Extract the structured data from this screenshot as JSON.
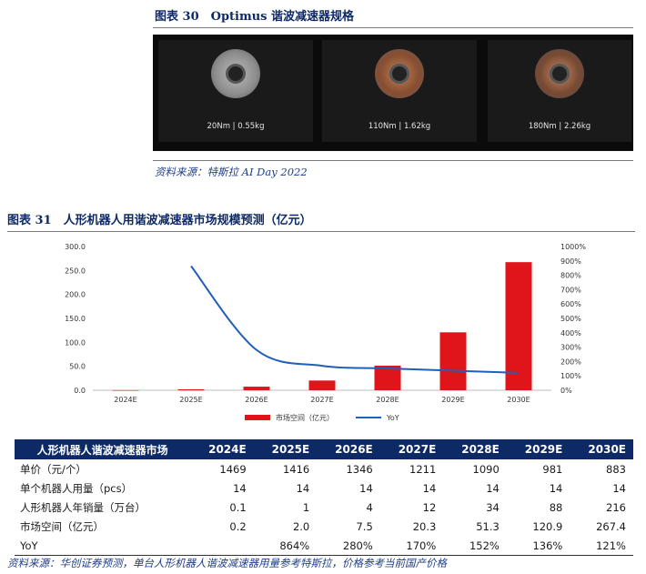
{
  "figure30": {
    "title": "图表 30　Optimus 谐波减速器规格",
    "products": [
      {
        "spec": "20Nm  |  0.55kg",
        "tone": "#9a9a9a"
      },
      {
        "spec": "110Nm  |  1.62kg",
        "tone": "#8a4e30"
      },
      {
        "spec": "180Nm  |  2.26kg",
        "tone": "#7a4a32"
      }
    ],
    "source": "资料来源：特斯拉 AI Day 2022"
  },
  "figure31": {
    "title": "图表 31　人形机器人用谐波减速器市场规模预测（亿元）"
  },
  "chart_data": {
    "type": "bar",
    "categories": [
      "2024E",
      "2025E",
      "2026E",
      "2027E",
      "2028E",
      "2029E",
      "2030E"
    ],
    "series": [
      {
        "name": "市场空间（亿元）",
        "type": "bar",
        "axis": "left",
        "color": "#e0151b",
        "values": [
          0.2,
          2.0,
          7.5,
          20.3,
          51.3,
          120.9,
          267.4
        ]
      },
      {
        "name": "YoY",
        "type": "line",
        "axis": "right",
        "color": "#1f5fb8",
        "values": [
          null,
          864,
          280,
          170,
          152,
          136,
          121
        ]
      }
    ],
    "y_left": {
      "ticks": [
        "0.0",
        "50.0",
        "100.0",
        "150.0",
        "200.0",
        "250.0",
        "300.0"
      ],
      "ylim": [
        0,
        300
      ]
    },
    "y_right": {
      "ticks": [
        "0%",
        "100%",
        "200%",
        "300%",
        "400%",
        "500%",
        "600%",
        "700%",
        "800%",
        "900%",
        "1000%"
      ],
      "ylim": [
        0,
        1000
      ]
    },
    "legend_placement": "bottom"
  },
  "table": {
    "header": [
      "人形机器人谐波减速器市场",
      "2024E",
      "2025E",
      "2026E",
      "2027E",
      "2028E",
      "2029E",
      "2030E"
    ],
    "rows": [
      [
        "单价（元/个）",
        "1469",
        "1416",
        "1346",
        "1211",
        "1090",
        "981",
        "883"
      ],
      [
        "单个机器人用量（pcs）",
        "14",
        "14",
        "14",
        "14",
        "14",
        "14",
        "14"
      ],
      [
        "人形机器人年销量（万台）",
        "0.1",
        "1",
        "4",
        "12",
        "34",
        "88",
        "216"
      ],
      [
        "市场空间（亿元）",
        "0.2",
        "2.0",
        "7.5",
        "20.3",
        "51.3",
        "120.9",
        "267.4"
      ],
      [
        "YoY",
        "",
        "864%",
        "280%",
        "170%",
        "152%",
        "136%",
        "121%"
      ]
    ]
  },
  "source2": "资料来源：华创证券预测，单台人形机器人谐波减速器用量参考特斯拉，价格参考当前国产价格"
}
